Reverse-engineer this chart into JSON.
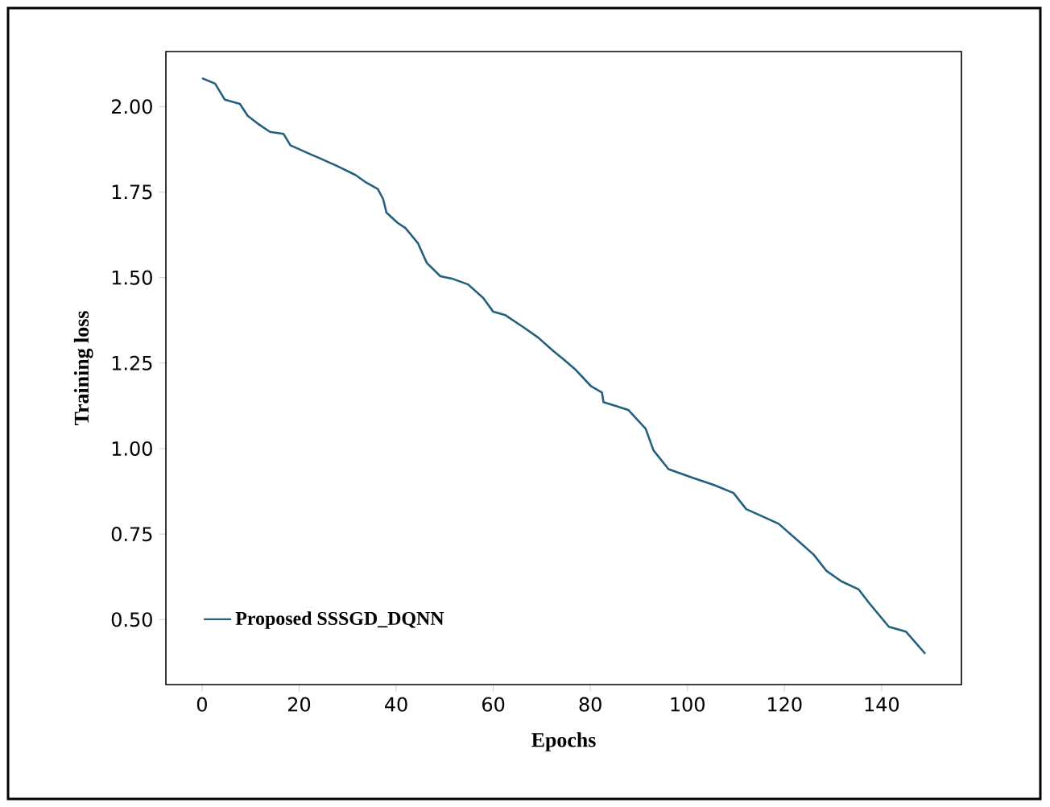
{
  "chart_data": {
    "type": "line",
    "xlabel": "Epochs",
    "ylabel": "Training loss",
    "xlim": [
      -7.45,
      156.45
    ],
    "ylim": [
      0.31,
      2.161
    ],
    "xticks": [
      0,
      20,
      40,
      60,
      80,
      100,
      120,
      140
    ],
    "yticks": [
      {
        "value": 0.5,
        "label": "0.50"
      },
      {
        "value": 0.75,
        "label": "0.75"
      },
      {
        "value": 1.0,
        "label": "1.00"
      },
      {
        "value": 1.25,
        "label": "1.25"
      },
      {
        "value": 1.5,
        "label": "1.50"
      },
      {
        "value": 1.75,
        "label": "1.75"
      },
      {
        "value": 2.0,
        "label": "2.00"
      }
    ],
    "legend": "bottom left",
    "grid": false,
    "marker": "none",
    "line_style": "solid",
    "series": [
      {
        "name": "Proposed SSSGD_DQNN",
        "color": "#23607f",
        "x": [
          0,
          2.7,
          4.7,
          7.8,
          9.4,
          11.5,
          14,
          16.8,
          18.2,
          21.8,
          24.4,
          28,
          31.6,
          33.6,
          36.2,
          37.3,
          38,
          40.3,
          41.9,
          44.5,
          46.3,
          49.1,
          51.7,
          54.8,
          57.9,
          60,
          62.5,
          66.2,
          69.3,
          72.4,
          74.4,
          77,
          80.1,
          82.4,
          82.7,
          87.8,
          91.4,
          93,
          96.1,
          101.2,
          105.4,
          109.5,
          112.1,
          115.7,
          118.8,
          122.9,
          126,
          128.6,
          131.7,
          135.3,
          137.4,
          141.5,
          145,
          149
        ],
        "values": [
          2.083,
          2.067,
          2.02,
          2.008,
          1.973,
          1.95,
          1.926,
          1.92,
          1.887,
          1.864,
          1.848,
          1.825,
          1.8,
          1.78,
          1.759,
          1.73,
          1.69,
          1.66,
          1.645,
          1.6,
          1.543,
          1.504,
          1.496,
          1.48,
          1.441,
          1.4,
          1.39,
          1.355,
          1.324,
          1.285,
          1.262,
          1.23,
          1.183,
          1.164,
          1.136,
          1.113,
          1.058,
          0.995,
          0.94,
          0.914,
          0.894,
          0.87,
          0.823,
          0.8,
          0.78,
          0.729,
          0.69,
          0.643,
          0.612,
          0.588,
          0.549,
          0.479,
          0.465,
          0.4
        ]
      }
    ]
  }
}
